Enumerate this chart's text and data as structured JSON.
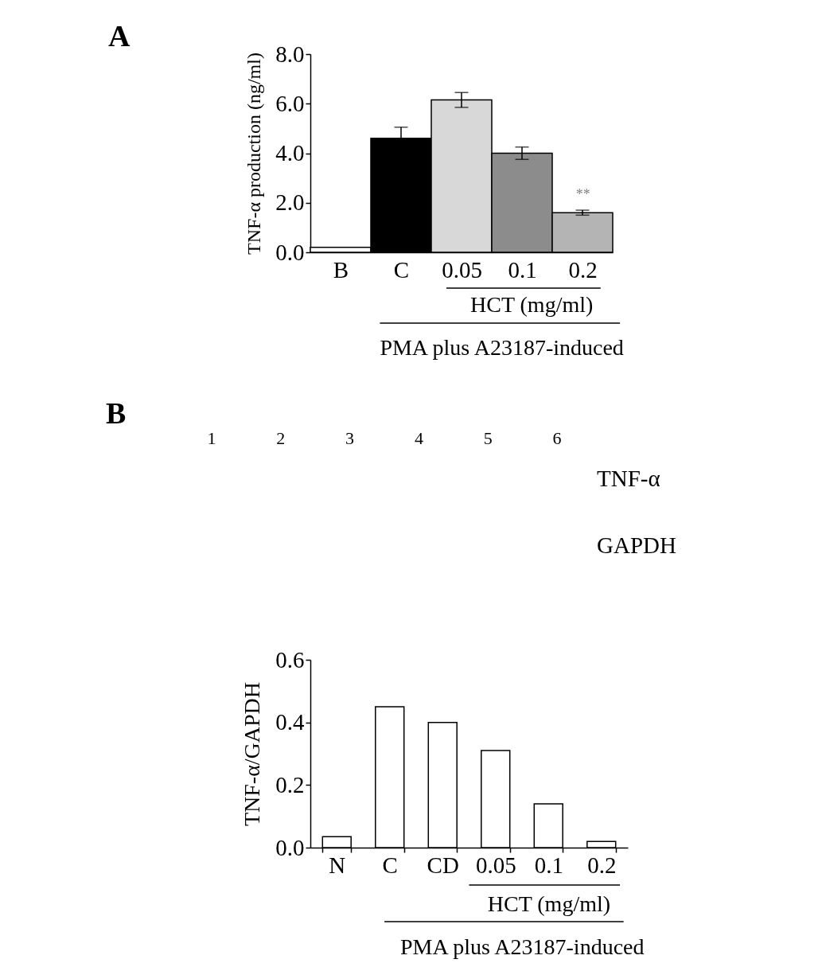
{
  "chart_data": [
    {
      "type": "bar",
      "title": "A",
      "ylabel": "TNF-α production (ng/ml)",
      "categories": [
        "B",
        "C",
        "0.05",
        "0.1",
        "0.2"
      ],
      "values": [
        0.2,
        4.6,
        6.15,
        4.0,
        1.6
      ],
      "colors": [
        "#ffffff",
        "#000000",
        "#d8d8d8",
        "#8c8c8c",
        "#b4b4b4"
      ],
      "errors": [
        null,
        0.45,
        0.3,
        0.25,
        0.1
      ],
      "ylim": [
        0,
        8
      ],
      "yticks": [
        {
          "value": 0,
          "label": "0.0"
        },
        {
          "value": 2,
          "label": "2.0"
        },
        {
          "value": 4,
          "label": "4.0"
        },
        {
          "value": 6,
          "label": "6.0"
        },
        {
          "value": 8,
          "label": "8.0"
        }
      ],
      "annotations": [
        "**",
        "HCT (mg/ml)",
        "PMA plus A23187-induced"
      ]
    },
    {
      "type": "bar",
      "title": "B",
      "ylabel": "TNF-α/GAPDH",
      "categories": [
        "N",
        "C",
        "CD",
        "0.05",
        "0.1",
        "0.2"
      ],
      "values": [
        0.035,
        0.45,
        0.4,
        0.31,
        0.14,
        0.02
      ],
      "color": "#ffffff",
      "ylim": [
        0,
        0.6
      ],
      "yticks": [
        {
          "value": 0,
          "label": "0.0"
        },
        0.2,
        0.4,
        0.6
      ],
      "annotations": [
        "1",
        "2",
        "3",
        "4",
        "5",
        "6",
        "TNF-α",
        "GAPDH",
        "HCT (mg/ml)",
        "PMA plus A23187-induced"
      ]
    }
  ]
}
